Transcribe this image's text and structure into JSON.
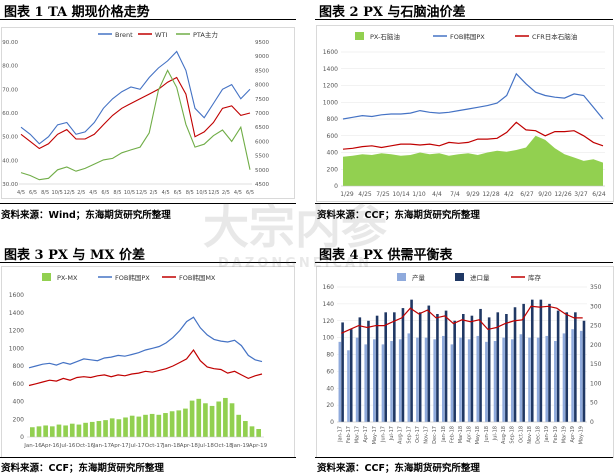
{
  "panels": [
    {
      "title": "图表 1  TA 期现价格走势",
      "source": "资料来源：Wind；东海期货研究所整理",
      "legend": [
        "Brent",
        "WTI",
        "PTA主力"
      ],
      "chart_data": {
        "type": "line",
        "title": "",
        "x_ticks": [
          "4/5",
          "6/5",
          "8/5",
          "10/5",
          "12/5",
          "2/5",
          "4/5",
          "6/5",
          "8/5",
          "10/5",
          "12/5",
          "2/5",
          "4/5",
          "6/5",
          "8/5",
          "10/5",
          "12/5",
          "2/5",
          "4/5",
          "6/5"
        ],
        "y_left": {
          "range": [
            30,
            90
          ],
          "ticks": [
            "30.00",
            "40.00",
            "50.00",
            "60.00",
            "70.00",
            "80.00",
            "90.00"
          ]
        },
        "y_right": {
          "range": [
            4500,
            9500
          ],
          "ticks": [
            "4500",
            "5000",
            "5500",
            "6000",
            "6500",
            "7000",
            "7500",
            "8000",
            "8500",
            "9000",
            "9500"
          ]
        },
        "series": [
          {
            "name": "Brent",
            "color": "#4472c4",
            "axis": "left",
            "values": [
              54,
              51,
              47,
              50,
              55,
              56,
              51,
              52,
              56,
              62,
              66,
              69,
              71,
              70,
              75,
              79,
              82,
              86,
              78,
              62,
              58,
              64,
              70,
              72,
              66,
              70
            ]
          },
          {
            "name": "WTI",
            "color": "#c00000",
            "axis": "left",
            "values": [
              51,
              48,
              45,
              47,
              51,
              53,
              49,
              49,
              51,
              55,
              59,
              62,
              64,
              66,
              68,
              70,
              73,
              75,
              68,
              50,
              52,
              56,
              62,
              63,
              59,
              60
            ]
          },
          {
            "name": "PTA主力",
            "color": "#70ad47",
            "axis": "right",
            "values": [
              4900,
              4800,
              4650,
              4700,
              5000,
              5100,
              4950,
              5050,
              5200,
              5350,
              5400,
              5600,
              5700,
              5800,
              6300,
              7800,
              8500,
              7900,
              6600,
              5800,
              5900,
              6200,
              6400,
              6000,
              6500,
              5000
            ]
          }
        ]
      }
    },
    {
      "title": "图表 2  PX 与石脑油价差",
      "source": "资料来源：CCF；东海期货研究所整理",
      "legend": [
        "PX-石脑油",
        "FOB韩国PX",
        "CFR日本石脑油"
      ],
      "chart_data": {
        "type": "line",
        "title": "",
        "x_ticks": [
          "1/29",
          "4/25",
          "7/25",
          "10/14",
          "1/10",
          "4/4",
          "7/4",
          "9/29",
          "12/28",
          "4/2",
          "6/27",
          "9/20",
          "12/26",
          "3/27",
          "6/24"
        ],
        "ylim": [
          0,
          1600
        ],
        "y_ticks": [
          "0",
          "200",
          "400",
          "600",
          "800",
          "1000",
          "1200",
          "1400",
          "1600"
        ],
        "series": [
          {
            "name": "PX-石脑油",
            "color": "#92d050",
            "kind": "area",
            "values": [
              350,
              360,
              380,
              370,
              390,
              380,
              360,
              370,
              400,
              380,
              390,
              360,
              380,
              390,
              370,
              400,
              420,
              410,
              430,
              460,
              600,
              550,
              450,
              380,
              340,
              300,
              320,
              280
            ]
          },
          {
            "name": "FOB韩国PX",
            "color": "#4472c4",
            "kind": "line",
            "values": [
              800,
              820,
              840,
              830,
              850,
              860,
              860,
              870,
              900,
              880,
              870,
              880,
              900,
              920,
              940,
              960,
              990,
              1080,
              1340,
              1220,
              1120,
              1080,
              1060,
              1050,
              1100,
              1080,
              940,
              800
            ]
          },
          {
            "name": "CFR日本石脑油",
            "color": "#c00000",
            "kind": "line",
            "values": [
              440,
              450,
              470,
              480,
              460,
              480,
              500,
              500,
              490,
              500,
              480,
              520,
              510,
              520,
              560,
              560,
              570,
              640,
              760,
              670,
              660,
              600,
              650,
              650,
              660,
              600,
              520,
              480
            ]
          }
        ]
      }
    },
    {
      "title": "图表 3  PX 与 MX 价差",
      "source": "资料来源：CCF；东海期货研究所整理",
      "legend": [
        "PX-MX",
        "FOB韩国PX",
        "FOB韩国MX"
      ],
      "chart_data": {
        "type": "line",
        "title": "",
        "x_ticks": [
          "Jan-16",
          "Apr-16",
          "Jul-16",
          "Oct-16",
          "Jan-17",
          "Apr-17",
          "Jul-17",
          "Oct-17",
          "Jan-18",
          "Apr-18",
          "Jul-18",
          "Oct-18",
          "Jan-19",
          "Apr-19"
        ],
        "ylim": [
          0,
          1600
        ],
        "y_ticks": [
          "0",
          "200",
          "400",
          "600",
          "800",
          "1000",
          "1200",
          "1400",
          "1600"
        ],
        "series": [
          {
            "name": "PX-MX",
            "color": "#92d050",
            "kind": "bar",
            "values": [
              110,
              120,
              130,
              120,
              140,
              130,
              150,
              140,
              160,
              170,
              180,
              190,
              210,
              200,
              220,
              240,
              230,
              250,
              260,
              250,
              270,
              290,
              300,
              320,
              410,
              430,
              380,
              350,
              400,
              440,
              380,
              250,
              180,
              120,
              90
            ]
          },
          {
            "name": "FOB韩国PX",
            "color": "#4472c4",
            "kind": "line",
            "values": [
              780,
              800,
              820,
              830,
              810,
              840,
              820,
              850,
              880,
              870,
              860,
              890,
              900,
              920,
              910,
              930,
              950,
              980,
              1000,
              1020,
              1060,
              1120,
              1200,
              1300,
              1350,
              1230,
              1150,
              1100,
              1080,
              1070,
              1090,
              1030,
              920,
              870,
              850
            ]
          },
          {
            "name": "FOB韩国MX",
            "color": "#c00000",
            "kind": "line",
            "values": [
              580,
              600,
              620,
              640,
              630,
              660,
              640,
              670,
              680,
              670,
              690,
              700,
              680,
              700,
              690,
              710,
              720,
              740,
              730,
              750,
              770,
              800,
              840,
              880,
              980,
              860,
              790,
              770,
              760,
              720,
              740,
              700,
              660,
              690,
              710
            ]
          }
        ]
      }
    },
    {
      "title": "图表 4  PX 供需平衡表",
      "source": "资料来源：CCF；东海期货研究所整理",
      "legend": [
        "产量",
        "进口量",
        "库存"
      ],
      "chart_data": {
        "type": "bar",
        "title": "",
        "categories": [
          "Jan-17",
          "Feb-17",
          "Mar-17",
          "Apr-17",
          "May-17",
          "Jun-17",
          "Jul-17",
          "Aug-17",
          "Sep-17",
          "Oct-17",
          "Nov-17",
          "Dec-17",
          "Jan-18",
          "Feb-18",
          "Mar-18",
          "Apr-18",
          "May-18",
          "Jun-18",
          "Jul-18",
          "Aug-18",
          "Sep-18",
          "Oct-18",
          "Nov-18",
          "Dec-18",
          "Jan-19",
          "Feb-19",
          "Mar-19",
          "Apr-19",
          "May-19"
        ],
        "y_left": {
          "range": [
            0,
            160
          ],
          "ticks": [
            "0",
            "20",
            "40",
            "60",
            "80",
            "100",
            "120",
            "140",
            "160"
          ]
        },
        "y_right": {
          "range": [
            0,
            350
          ],
          "ticks": [
            "0",
            "50",
            "100",
            "150",
            "200",
            "250",
            "300",
            "350"
          ]
        },
        "series": [
          {
            "name": "产量",
            "color": "#8faadc",
            "kind": "bar",
            "axis": "left",
            "values": [
              95,
              85,
              100,
              92,
              98,
              92,
              96,
              98,
              105,
              100,
              100,
              98,
              102,
              92,
              100,
              98,
              102,
              95,
              96,
              100,
              98,
              104,
              100,
              100,
              102,
              96,
              105,
              110,
              108
            ]
          },
          {
            "name": "进口量",
            "color": "#203864",
            "kind": "bar",
            "axis": "left",
            "values": [
              118,
              110,
              124,
              120,
              126,
              130,
              130,
              135,
              145,
              130,
              138,
              128,
              132,
              120,
              128,
              126,
              134,
              124,
              130,
              128,
              136,
              140,
              145,
              145,
              140,
              132,
              130,
              130,
              120
            ]
          },
          {
            "name": "库存",
            "color": "#c00000",
            "kind": "line",
            "axis": "right",
            "values": [
              230,
              240,
              250,
              245,
              250,
              250,
              260,
              270,
              295,
              280,
              290,
              270,
              275,
              255,
              265,
              260,
              265,
              240,
              245,
              255,
              262,
              265,
              300,
              298,
              300,
              295,
              280,
              270,
              270
            ]
          }
        ]
      }
    }
  ],
  "watermark": {
    "main": "大宗内参",
    "sub": "DAZONGNEICAN"
  }
}
